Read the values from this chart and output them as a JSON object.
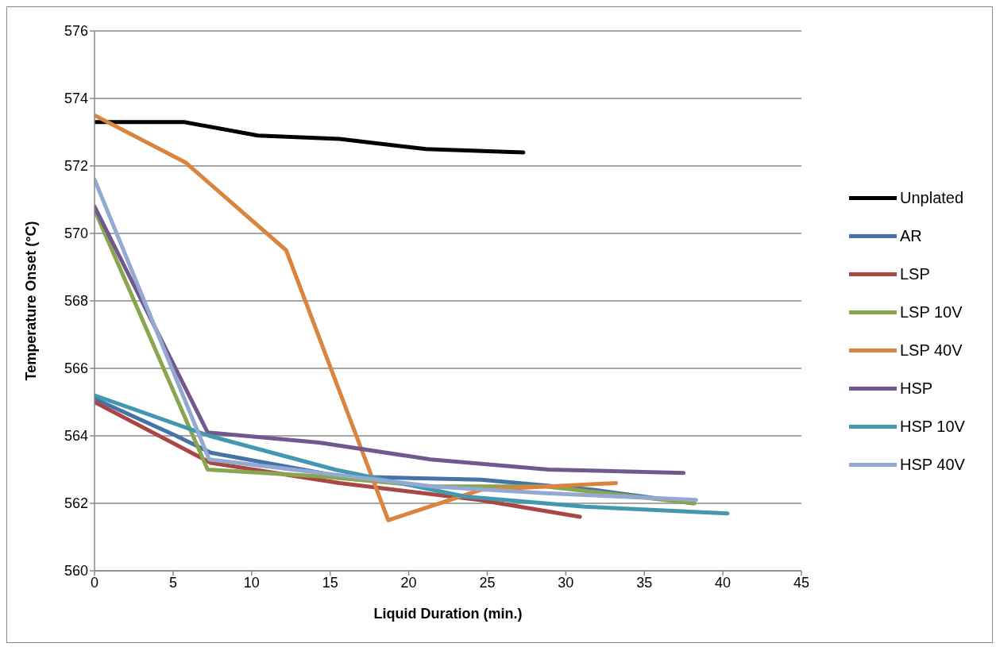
{
  "chart_data": {
    "type": "line",
    "xlabel": "Liquid Duration (min.)",
    "ylabel": "Temperature Onset (°C)",
    "xlim": [
      0,
      45
    ],
    "xticks": [
      0,
      5,
      10,
      15,
      20,
      25,
      30,
      35,
      40,
      45
    ],
    "ylim": [
      560,
      576
    ],
    "yticks": [
      560,
      562,
      564,
      566,
      568,
      570,
      572,
      574,
      576
    ],
    "grid": "y",
    "legend": "right",
    "marker": "none",
    "line_style": "solid",
    "series": [
      {
        "name": "Unplated",
        "color": "#000000",
        "x": [
          0,
          5.7,
          10.4,
          15.6,
          21.1,
          27.3
        ],
        "values": [
          573.3,
          573.3,
          572.9,
          572.8,
          572.5,
          572.4
        ]
      },
      {
        "name": "AR",
        "color": "#4572a7",
        "x": [
          0,
          5.2,
          7.4,
          15.6,
          24.6,
          31.8,
          38.1
        ],
        "values": [
          565.1,
          564.0,
          563.5,
          562.8,
          562.7,
          562.4,
          562.0
        ]
      },
      {
        "name": "LSP",
        "color": "#aa4643",
        "x": [
          0,
          7.4,
          15.6,
          24.5,
          30.9
        ],
        "values": [
          565.0,
          563.2,
          562.6,
          562.1,
          561.6
        ]
      },
      {
        "name": "LSP 10V",
        "color": "#89a54e",
        "x": [
          0,
          7.2,
          14.3,
          21.4,
          28.7,
          38.2
        ],
        "values": [
          570.7,
          563.0,
          562.8,
          562.5,
          562.5,
          562.0
        ]
      },
      {
        "name": "LSP 40V",
        "color": "#db843d",
        "x": [
          0,
          5.8,
          12.2,
          18.7,
          24.6,
          33.2
        ],
        "values": [
          573.5,
          572.1,
          569.5,
          561.5,
          562.4,
          562.6
        ]
      },
      {
        "name": "HSP",
        "color": "#71588f",
        "x": [
          0,
          7.2,
          14.3,
          21.4,
          28.9,
          37.5
        ],
        "values": [
          570.8,
          564.1,
          563.8,
          563.3,
          563.0,
          562.9
        ]
      },
      {
        "name": "HSP 10V",
        "color": "#4198af",
        "x": [
          0,
          7.3,
          15.3,
          23.6,
          31.2,
          40.3
        ],
        "values": [
          565.2,
          564.0,
          563.0,
          562.2,
          561.9,
          561.7
        ]
      },
      {
        "name": "HSP 40V",
        "color": "#93a9cf",
        "x": [
          0,
          7.3,
          14.4,
          21.5,
          28.7,
          38.3
        ],
        "values": [
          571.6,
          563.3,
          562.9,
          562.5,
          562.3,
          562.1
        ]
      }
    ]
  }
}
